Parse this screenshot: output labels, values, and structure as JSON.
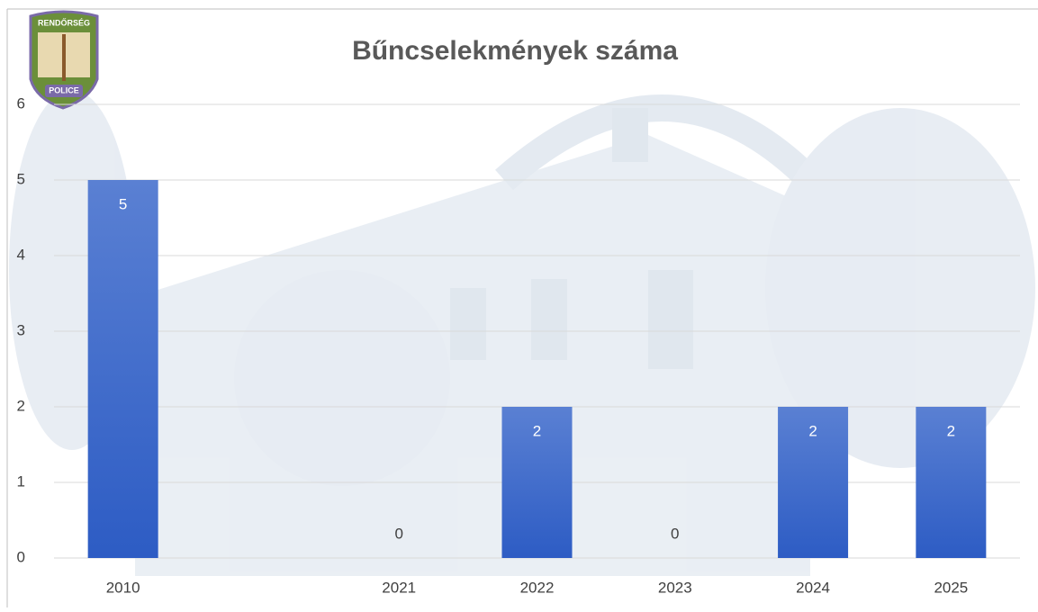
{
  "logo": {
    "top": "RENDŐRSÉG",
    "bottom": "POLICE"
  },
  "chart_data": {
    "type": "bar",
    "title": "Bűncselekmények száma",
    "categories": [
      "2010",
      null,
      "2021",
      "2022",
      "2023",
      "2024",
      "2025"
    ],
    "values": [
      5,
      null,
      0,
      2,
      0,
      2,
      2
    ],
    "color": "#3f6bcc",
    "ylim": [
      0,
      6
    ],
    "yticks": [
      0,
      1,
      2,
      3,
      4,
      5,
      6
    ],
    "grid": true
  }
}
